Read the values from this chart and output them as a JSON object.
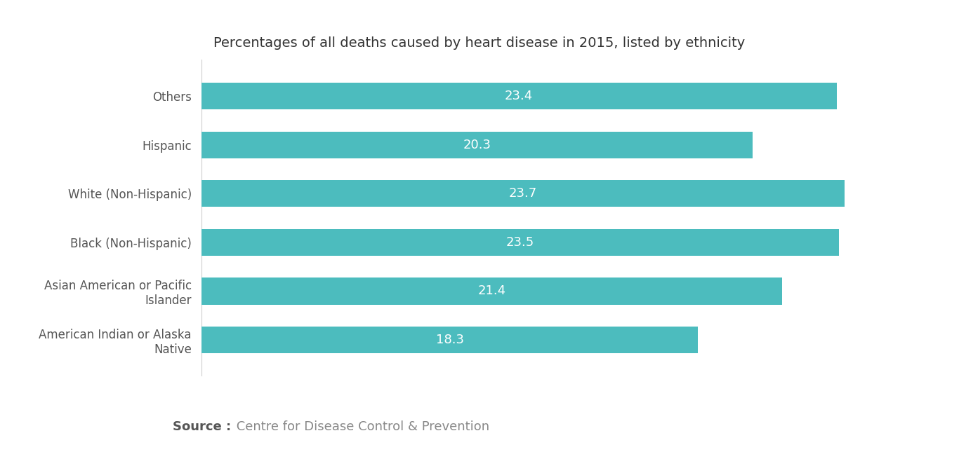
{
  "title": "Percentages of all deaths caused by heart disease in 2015, listed by ethnicity",
  "categories": [
    "American Indian or Alaska\nNative",
    "Asian American or Pacific\nIslander",
    "Black (Non-Hispanic)",
    "White (Non-Hispanic)",
    "Hispanic",
    "Others"
  ],
  "values": [
    18.3,
    21.4,
    23.5,
    23.7,
    20.3,
    23.4
  ],
  "bar_color": "#4CBCBE",
  "label_color": "#555555",
  "title_color": "#333333",
  "background_color": "#ffffff",
  "source_bold": "Source :",
  "source_text": " Centre for Disease Control & Prevention",
  "source_color_bold": "#555555",
  "source_color_text": "#888888",
  "title_fontsize": 14,
  "value_fontsize": 13,
  "source_fontsize": 13,
  "bar_height": 0.55,
  "xlim": [
    0,
    26.5
  ],
  "tick_label_fontsize": 12,
  "ytick_color": "#555555"
}
